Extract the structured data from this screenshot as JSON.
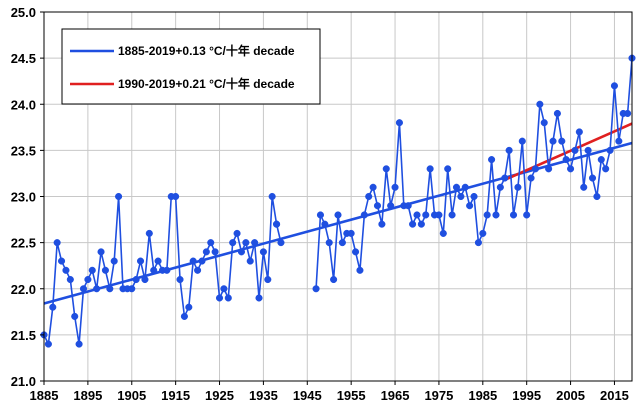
{
  "chart_data": {
    "type": "line",
    "title": "",
    "xlabel": "",
    "ylabel": "",
    "xlim": [
      1885,
      2019
    ],
    "ylim": [
      21.0,
      25.0
    ],
    "yticks": [
      21.0,
      21.5,
      22.0,
      22.5,
      23.0,
      23.5,
      24.0,
      24.5,
      25.0
    ],
    "ytick_labels": [
      "21.0",
      "21.5",
      "22.0",
      "22.5",
      "23.0",
      "23.5",
      "24.0",
      "24.5",
      "25.0"
    ],
    "xticks": [
      1885,
      1895,
      1905,
      1915,
      1925,
      1935,
      1945,
      1955,
      1965,
      1975,
      1985,
      1995,
      2005,
      2015
    ],
    "xtick_labels": [
      "1885",
      "1895",
      "1905",
      "1915",
      "1925",
      "1935",
      "1945",
      "1955",
      "1965",
      "1975",
      "1985",
      "1995",
      "2005",
      "2015"
    ],
    "grid": true,
    "legend_position": "top-left",
    "series": [
      {
        "color": "#1f4fe0",
        "marker": "circle",
        "segments": [
          {
            "x": [
              1885,
              1886,
              1887,
              1888,
              1889,
              1890,
              1891,
              1892,
              1893,
              1894,
              1895,
              1896,
              1897,
              1898,
              1899,
              1900,
              1901,
              1902,
              1903,
              1904,
              1905,
              1906,
              1907,
              1908,
              1909,
              1910,
              1911,
              1912,
              1913,
              1914,
              1915,
              1916,
              1917,
              1918,
              1919,
              1920,
              1921,
              1922,
              1923,
              1924,
              1925,
              1926,
              1927,
              1928,
              1929,
              1930,
              1931,
              1932,
              1933,
              1934,
              1935,
              1936,
              1937,
              1938
            ],
            "y": [
              21.5,
              21.4,
              21.8,
              22.5,
              22.3,
              22.2,
              22.1,
              21.7,
              21.4,
              22.0,
              22.1,
              22.2,
              22.0,
              22.4,
              22.2,
              22.0,
              22.3,
              23.0,
              22.0,
              22.0,
              22.0,
              22.1,
              22.3,
              22.1,
              22.6,
              22.2,
              22.3,
              22.2,
              22.2,
              23.0,
              23.0,
              22.1,
              21.7,
              21.8,
              22.3,
              22.2,
              22.3,
              22.4,
              22.5,
              22.4,
              21.9,
              22.0,
              21.9,
              22.5,
              22.6,
              22.4,
              22.5,
              22.3,
              22.5,
              21.9,
              22.4,
              22.1,
              23.0,
              22.7
            ]
          },
          {
            "x": [
              1938,
              1939
            ],
            "y": [
              22.7,
              22.5
            ]
          },
          {
            "x": [
              1947,
              1948,
              1949,
              1950,
              1951,
              1952,
              1953,
              1954,
              1955,
              1956,
              1957,
              1958,
              1959,
              1960,
              1961,
              1962,
              1963,
              1964,
              1965,
              1966,
              1967,
              1968,
              1969,
              1970,
              1971,
              1972,
              1973,
              1974,
              1975,
              1976,
              1977,
              1978,
              1979,
              1980,
              1981,
              1982,
              1983,
              1984,
              1985,
              1986,
              1987,
              1988,
              1989,
              1990,
              1991,
              1992,
              1993,
              1994,
              1995,
              1996,
              1997,
              1998,
              1999,
              2000,
              2001,
              2002,
              2003,
              2004,
              2005,
              2006,
              2007,
              2008,
              2009,
              2010,
              2011,
              2012,
              2013,
              2014,
              2015,
              2016,
              2017,
              2018,
              2019
            ],
            "y": [
              22.0,
              22.8,
              22.7,
              22.5,
              22.1,
              22.8,
              22.5,
              22.6,
              22.6,
              22.4,
              22.2,
              22.8,
              23.0,
              23.1,
              22.9,
              22.7,
              23.3,
              22.9,
              23.1,
              23.8,
              22.9,
              22.9,
              22.7,
              22.8,
              22.7,
              22.8,
              23.3,
              22.8,
              22.8,
              22.6,
              23.3,
              22.8,
              23.1,
              23.0,
              23.1,
              22.9,
              23.0,
              22.5,
              22.6,
              22.8,
              23.4,
              22.8,
              23.1,
              23.2,
              23.5,
              22.8,
              23.1,
              23.6,
              22.8,
              23.2,
              23.3,
              24.0,
              23.8,
              23.3,
              23.6,
              23.9,
              23.6,
              23.4,
              23.3,
              23.5,
              23.7,
              23.1,
              23.5,
              23.2,
              23.0,
              23.4,
              23.3,
              23.5,
              24.2,
              23.6,
              23.9,
              23.9,
              24.5
            ]
          }
        ]
      }
    ],
    "trendlines": [
      {
        "label": "1885-2019+0.13 °C/十年 decade",
        "color": "#1f4fe0",
        "x": [
          1885,
          2019
        ],
        "y": [
          21.84,
          23.58
        ]
      },
      {
        "label": "1990-2019+0.21 °C/十年 decade",
        "color": "#e02020",
        "x": [
          1990,
          2019
        ],
        "y": [
          23.18,
          23.79
        ]
      }
    ]
  }
}
